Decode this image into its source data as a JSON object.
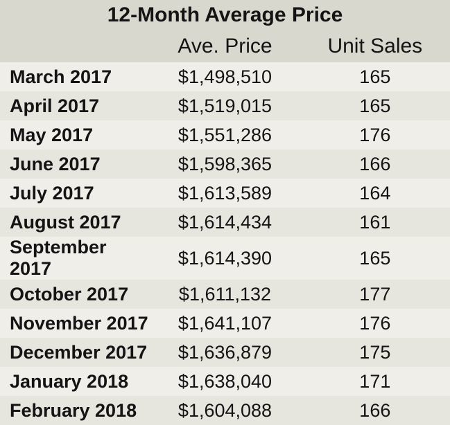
{
  "chart_data": {
    "type": "table",
    "title": "12-Month Average Price",
    "columns": [
      "",
      "Ave. Price",
      "Unit Sales"
    ],
    "rows": [
      {
        "month": "March 2017",
        "price": "$1,498,510",
        "sales": "165"
      },
      {
        "month": "April 2017",
        "price": "$1,519,015",
        "sales": "165"
      },
      {
        "month": "May 2017",
        "price": "$1,551,286",
        "sales": "176"
      },
      {
        "month": "June 2017",
        "price": "$1,598,365",
        "sales": "166"
      },
      {
        "month": "July 2017",
        "price": "$1,613,589",
        "sales": "164"
      },
      {
        "month": "August 2017",
        "price": "$1,614,434",
        "sales": "161"
      },
      {
        "month": "September 2017",
        "price": "$1,614,390",
        "sales": "165"
      },
      {
        "month": "October 2017",
        "price": "$1,611,132",
        "sales": "177"
      },
      {
        "month": "November 2017",
        "price": "$1,641,107",
        "sales": "176"
      },
      {
        "month": "December 2017",
        "price": "$1,636,879",
        "sales": "175"
      },
      {
        "month": "January 2018",
        "price": "$1,638,040",
        "sales": "171"
      },
      {
        "month": "February 2018",
        "price": "$1,604,088",
        "sales": "166"
      }
    ]
  },
  "colors": {
    "header_bg": "#d9d8cf",
    "row_light": "#efeee9",
    "row_dark": "#e6e5de",
    "text": "#141414"
  }
}
